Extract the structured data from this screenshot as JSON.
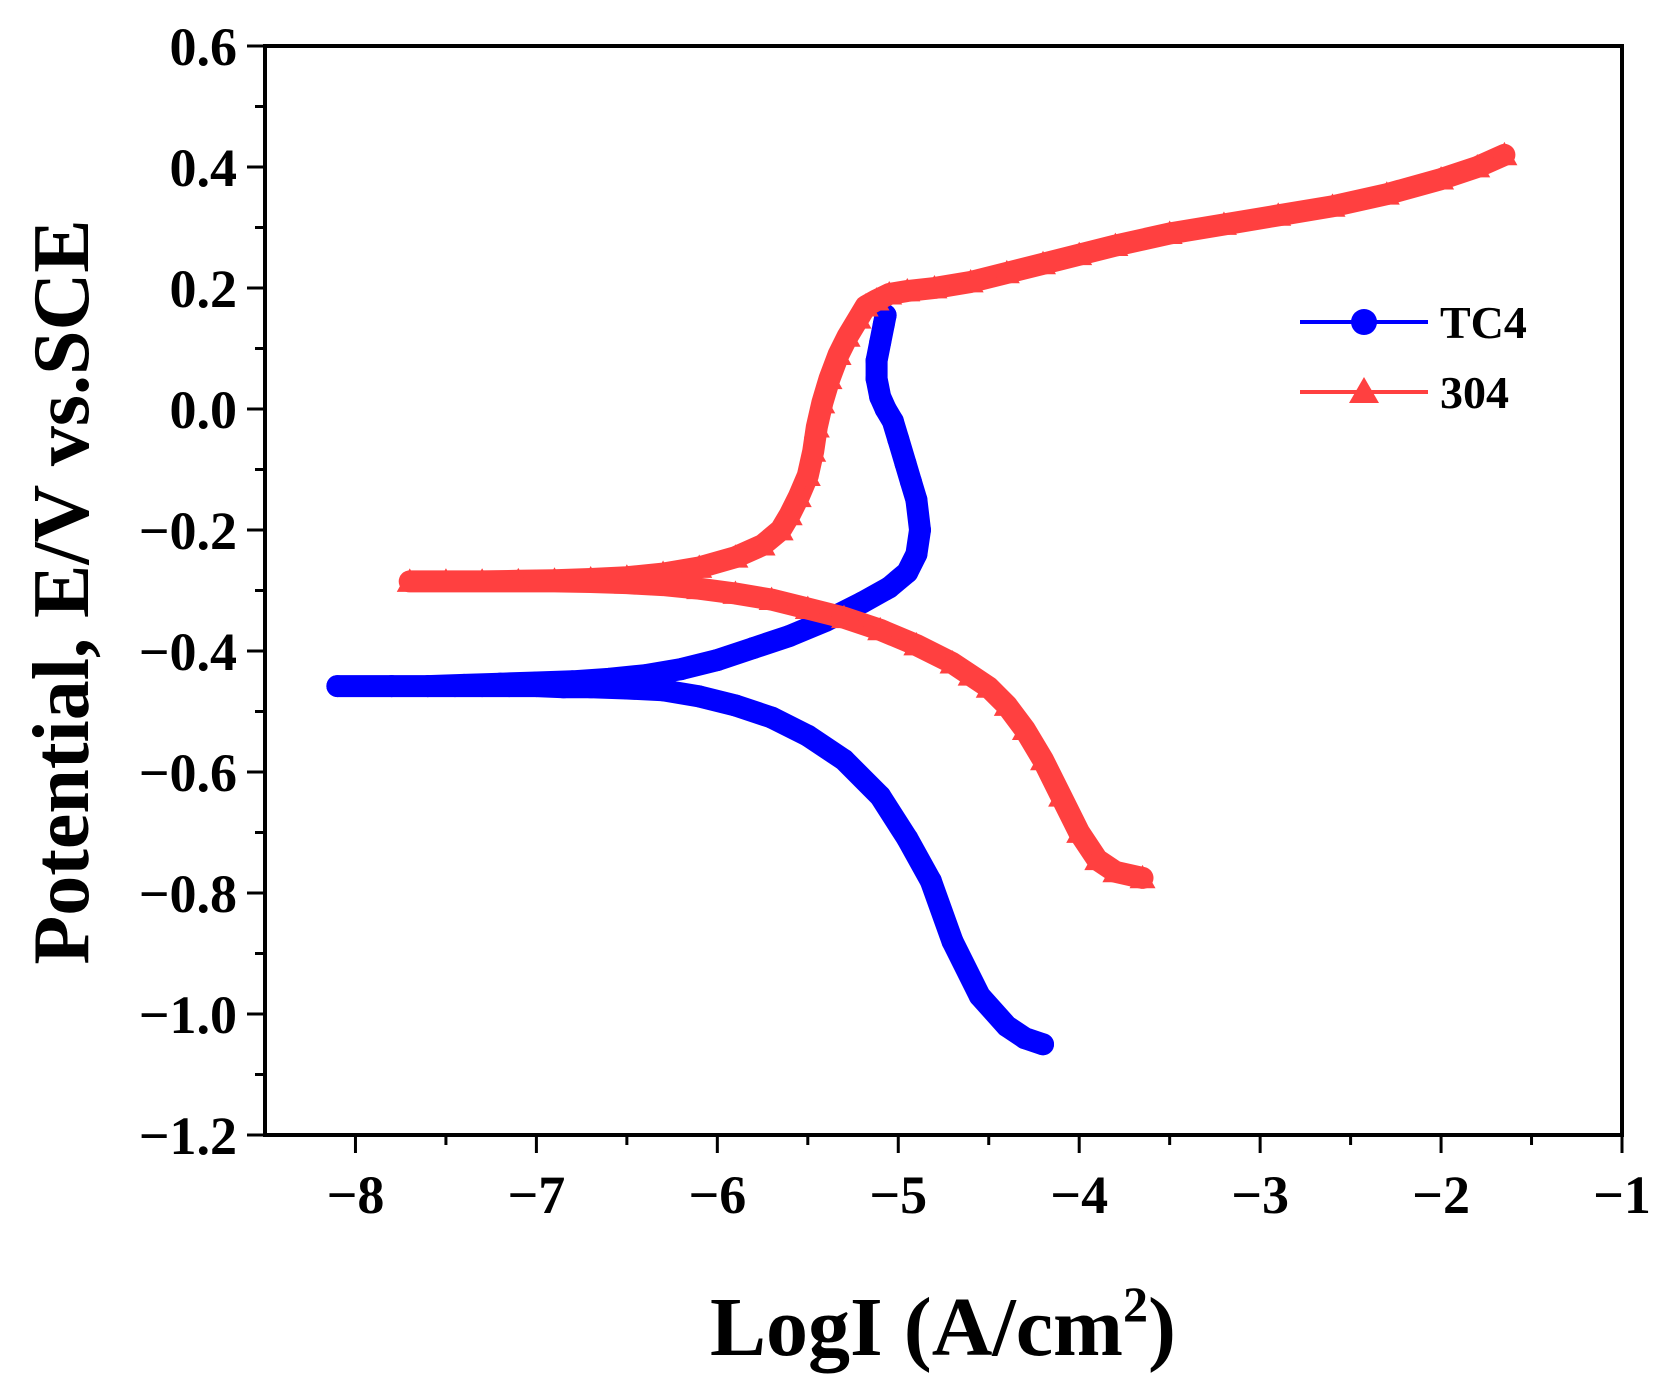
{
  "chart_data": {
    "type": "line",
    "xlabel_main": "LogI (A/cm",
    "xlabel_sup": "2",
    "xlabel_close": ")",
    "ylabel": "Potential, E/V vs.SCE",
    "xlim": [
      -8.5,
      -1
    ],
    "ylim": [
      -1.2,
      0.6
    ],
    "xticks": [
      -8,
      -7,
      -6,
      -5,
      -4,
      -3,
      -2,
      -1
    ],
    "xtick_labels": [
      "−8",
      "−7",
      "−6",
      "−5",
      "−4",
      "−3",
      "−2",
      "−1"
    ],
    "yticks": [
      -1.2,
      -1.0,
      -0.8,
      -0.6,
      -0.4,
      -0.2,
      0.0,
      0.2,
      0.4,
      0.6
    ],
    "ytick_labels": [
      "−1.2",
      "−1.0",
      "−0.8",
      "−0.6",
      "−0.4",
      "−0.2",
      "0.0",
      "0.2",
      "0.4",
      "0.6"
    ],
    "legend_position": "right",
    "series": [
      {
        "name": "TC4",
        "color": "#0000ff",
        "marker": "circle",
        "x": [
          -4.2,
          -4.3,
          -4.4,
          -4.55,
          -4.7,
          -4.82,
          -4.95,
          -5.1,
          -5.3,
          -5.5,
          -5.7,
          -5.9,
          -6.1,
          -6.3,
          -6.5,
          -6.7,
          -6.85,
          -7.0,
          -7.15,
          -7.3,
          -7.45,
          -7.6,
          -7.8,
          -8.1,
          -7.8,
          -7.6,
          -7.4,
          -7.2,
          -7.0,
          -6.8,
          -6.6,
          -6.4,
          -6.2,
          -6.0,
          -5.8,
          -5.6,
          -5.4,
          -5.2,
          -5.05,
          -4.95,
          -4.9,
          -4.88,
          -4.9,
          -4.93,
          -4.96,
          -5.0,
          -5.03,
          -5.07,
          -5.1,
          -5.12,
          -5.12,
          -5.1,
          -5.08,
          -5.07
        ],
        "y": [
          -1.05,
          -1.04,
          -1.02,
          -0.97,
          -0.88,
          -0.78,
          -0.71,
          -0.64,
          -0.58,
          -0.54,
          -0.51,
          -0.49,
          -0.475,
          -0.465,
          -0.462,
          -0.46,
          -0.46,
          -0.458,
          -0.458,
          -0.458,
          -0.458,
          -0.458,
          -0.458,
          -0.458,
          -0.458,
          -0.458,
          -0.456,
          -0.454,
          -0.452,
          -0.45,
          -0.446,
          -0.44,
          -0.43,
          -0.415,
          -0.395,
          -0.375,
          -0.35,
          -0.32,
          -0.295,
          -0.27,
          -0.24,
          -0.2,
          -0.15,
          -0.12,
          -0.09,
          -0.05,
          -0.02,
          0.0,
          0.02,
          0.05,
          0.08,
          0.11,
          0.14,
          0.155
        ]
      },
      {
        "name": "304",
        "color": "#ff4040",
        "marker": "triangle",
        "x": [
          -3.65,
          -3.8,
          -3.9,
          -4.0,
          -4.1,
          -4.2,
          -4.3,
          -4.4,
          -4.5,
          -4.6,
          -4.7,
          -4.9,
          -5.1,
          -5.3,
          -5.5,
          -5.7,
          -5.9,
          -6.1,
          -6.3,
          -6.5,
          -6.7,
          -6.9,
          -7.1,
          -7.3,
          -7.5,
          -7.7,
          -7.5,
          -7.3,
          -7.1,
          -6.9,
          -6.7,
          -6.5,
          -6.3,
          -6.1,
          -5.9,
          -5.75,
          -5.65,
          -5.6,
          -5.55,
          -5.5,
          -5.47,
          -5.45,
          -5.42,
          -5.38,
          -5.33,
          -5.28,
          -5.22,
          -5.18,
          -5.12,
          -5.05,
          -4.95,
          -4.8,
          -4.6,
          -4.4,
          -4.2,
          -4.0,
          -3.8,
          -3.5,
          -3.2,
          -2.9,
          -2.6,
          -2.3,
          -2.0,
          -1.8,
          -1.65
        ],
        "y": [
          -0.775,
          -0.765,
          -0.745,
          -0.7,
          -0.64,
          -0.58,
          -0.53,
          -0.49,
          -0.46,
          -0.44,
          -0.42,
          -0.39,
          -0.365,
          -0.345,
          -0.33,
          -0.315,
          -0.305,
          -0.297,
          -0.291,
          -0.288,
          -0.286,
          -0.285,
          -0.285,
          -0.285,
          -0.285,
          -0.285,
          -0.285,
          -0.285,
          -0.284,
          -0.283,
          -0.281,
          -0.278,
          -0.272,
          -0.262,
          -0.245,
          -0.225,
          -0.2,
          -0.175,
          -0.145,
          -0.11,
          -0.07,
          -0.03,
          0.01,
          0.05,
          0.09,
          0.12,
          0.15,
          0.17,
          0.18,
          0.19,
          0.195,
          0.2,
          0.21,
          0.225,
          0.24,
          0.255,
          0.27,
          0.29,
          0.305,
          0.32,
          0.335,
          0.355,
          0.38,
          0.4,
          0.42
        ]
      }
    ]
  }
}
